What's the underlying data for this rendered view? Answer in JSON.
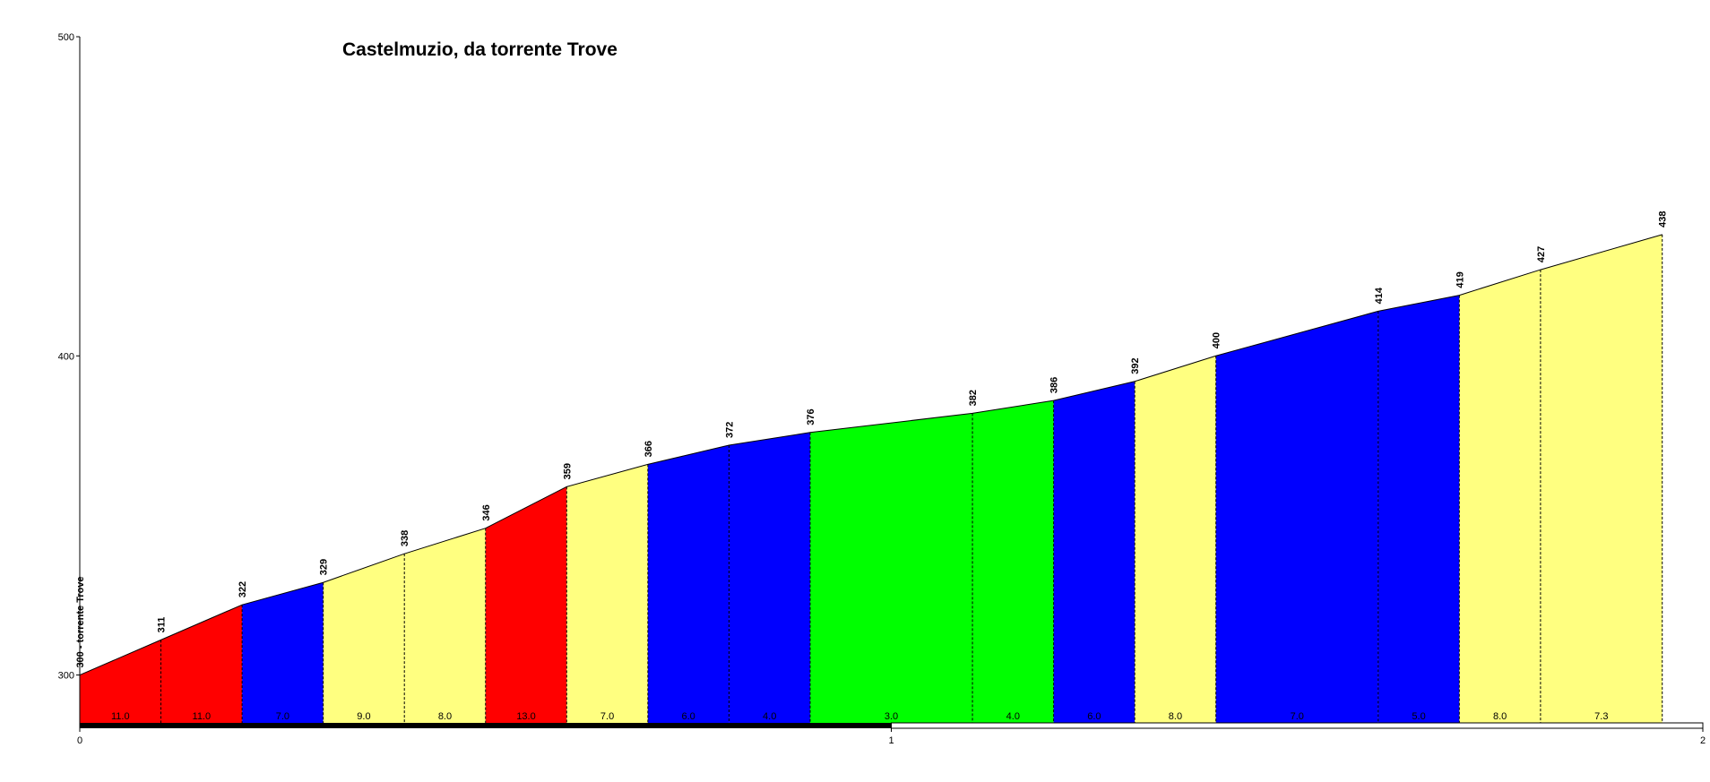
{
  "chart_data": {
    "type": "elevation-profile",
    "title": "Castelmuzio, da torrente Trove",
    "x": [
      0,
      0.1,
      0.2,
      0.3,
      0.4,
      0.5,
      0.6,
      0.7,
      0.8,
      0.9,
      1.1,
      1.2,
      1.3,
      1.4,
      1.6,
      1.7,
      1.8,
      1.95
    ],
    "values": [
      300,
      311,
      322,
      329,
      338,
      346,
      359,
      366,
      372,
      376,
      382,
      386,
      392,
      400,
      414,
      419,
      427,
      438
    ],
    "value_labels": [
      "300 - torrente Trove",
      "311",
      "322",
      "329",
      "338",
      "346",
      "359",
      "366",
      "372",
      "376",
      "382",
      "386",
      "392",
      "400",
      "414",
      "419",
      "427",
      "438"
    ],
    "grades": [
      11,
      11,
      7,
      9,
      8,
      13,
      7,
      6,
      4,
      3,
      4,
      6,
      8,
      7,
      5,
      8,
      7.3
    ],
    "grade_labels": [
      "11.0",
      "11.0",
      "7.0",
      "9.0",
      "8.0",
      "13.0",
      "7.0",
      "6.0",
      "4.0",
      "3.0",
      "4.0",
      "6.0",
      "8.0",
      "7.0",
      "5.0",
      "8.0",
      "7.3"
    ],
    "grade_colors": [
      "#ff0000",
      "#ff0000",
      "#0000ff",
      "#ffff80",
      "#ffff80",
      "#ff0000",
      "#ffff80",
      "#0000ff",
      "#0000ff",
      "#00ff00",
      "#00ff00",
      "#0000ff",
      "#ffff80",
      "#0000ff",
      "#0000ff",
      "#ffff80",
      "#ffff80"
    ],
    "xlim": [
      0,
      2
    ],
    "xticks": [
      0,
      1,
      2
    ],
    "ylim": [
      285,
      500
    ],
    "yticks": [
      300,
      400,
      500
    ]
  }
}
